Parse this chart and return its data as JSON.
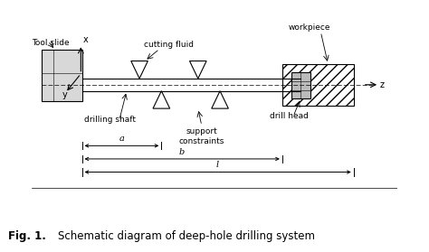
{
  "bg_color": "#ffffff",
  "line_color": "#000000",
  "title": "Fig. 1.",
  "caption": "Schematic diagram of deep-hole drilling system",
  "labels": {
    "tool_slide": "Tool slide",
    "cutting_fluid": "cutting fluid",
    "workpiece": "workpiece",
    "drilling_shaft": "drilling shaft",
    "support_constraints": "support\nconstraints",
    "drill_head": "drill head",
    "x_axis": "x",
    "y_axis": "y",
    "z_axis": "z",
    "dim_a": "a",
    "dim_b": "b",
    "dim_l": "l"
  }
}
